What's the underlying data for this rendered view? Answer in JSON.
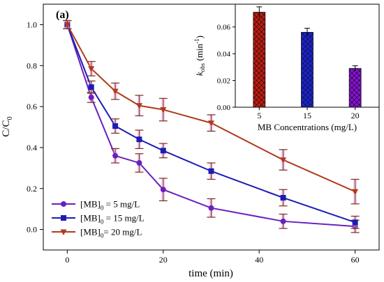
{
  "chart_data": [
    {
      "type": "line",
      "panel_label": "(a)",
      "xlabel": "time (min)",
      "ylabel": "C/C0",
      "ylabel_main": "C/C",
      "ylabel_sub": "0",
      "xlim": [
        -5,
        65
      ],
      "ylim": [
        -0.1,
        1.1
      ],
      "xticks": [
        0,
        20,
        40,
        60
      ],
      "yticks": [
        0.0,
        0.2,
        0.4,
        0.6,
        0.8,
        1.0
      ],
      "legend_position": "bottom-left",
      "series": [
        {
          "name": "[MB]0 = 5 mg/L",
          "name_parts": [
            "[MB]",
            "0",
            " = 5 mg/L"
          ],
          "color": "#6a1fbf",
          "marker": "circle",
          "x": [
            0,
            5,
            10,
            15,
            20,
            30,
            45,
            60
          ],
          "y": [
            1.0,
            0.645,
            0.36,
            0.325,
            0.195,
            0.105,
            0.04,
            0.015
          ],
          "err": [
            0.02,
            0.025,
            0.035,
            0.045,
            0.055,
            0.045,
            0.035,
            0.03
          ]
        },
        {
          "name": "[MB]0 = 15 mg/L",
          "name_parts": [
            "[MB]",
            "0",
            " = 15 mg/L"
          ],
          "color": "#1c1cb4",
          "marker": "square",
          "x": [
            0,
            5,
            10,
            15,
            20,
            30,
            45,
            60
          ],
          "y": [
            1.0,
            0.695,
            0.505,
            0.44,
            0.385,
            0.285,
            0.155,
            0.035
          ],
          "err": [
            0.02,
            0.03,
            0.035,
            0.045,
            0.035,
            0.04,
            0.04,
            0.03
          ]
        },
        {
          "name": "[MB]0= 20 mg/L",
          "name_parts": [
            "[MB]",
            "0",
            "= 20 mg/L"
          ],
          "color": "#b03a1c",
          "marker": "triangle-down",
          "x": [
            0,
            5,
            10,
            15,
            20,
            30,
            45,
            60
          ],
          "y": [
            1.0,
            0.785,
            0.675,
            0.605,
            0.585,
            0.52,
            0.34,
            0.185
          ],
          "err": [
            0.02,
            0.035,
            0.04,
            0.05,
            0.055,
            0.04,
            0.05,
            0.06
          ]
        }
      ]
    },
    {
      "type": "bar",
      "xlabel": "MB Concentrations (mg/L)",
      "ylabel": "kobs (min-1)",
      "ylabel_k": "k",
      "ylabel_sub": "obs",
      "ylabel_unit": " (min",
      "ylabel_sup": "-1",
      "ylabel_close": ")",
      "categories": [
        "5",
        "15",
        "20"
      ],
      "values": [
        0.071,
        0.056,
        0.029
      ],
      "err": [
        0.004,
        0.003,
        0.002
      ],
      "colors": [
        "#c41a10",
        "#1a22d8",
        "#8a10d8"
      ],
      "ylim": [
        0,
        0.077
      ],
      "yticks": [
        0.0,
        0.02,
        0.04,
        0.06
      ],
      "ytick_labels": [
        "0.00",
        "0.02",
        "0.04",
        "0.06"
      ]
    }
  ]
}
